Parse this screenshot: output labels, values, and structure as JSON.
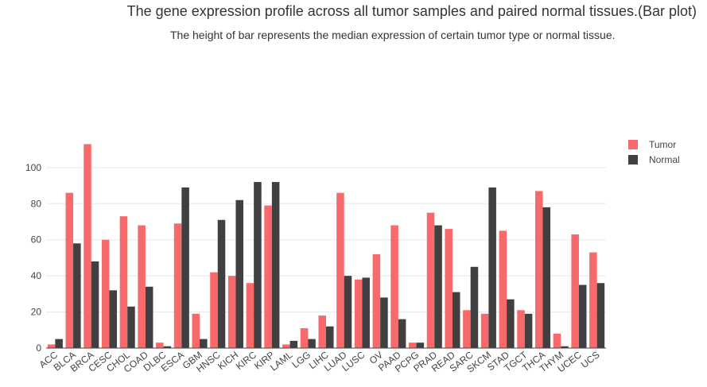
{
  "header": {
    "title": "The gene expression profile across all tumor samples and paired normal tissues.(Bar plot)",
    "subtitle": "The height of bar represents the median expression of certain tumor type or normal tissue."
  },
  "chart_data": {
    "type": "bar",
    "title": "The gene expression profile across all tumor samples and paired normal tissues.(Bar plot)",
    "subtitle": "The height of bar represents the median expression of certain tumor type or normal tissue.",
    "xlabel": "",
    "ylabel": "",
    "ylim": [
      0,
      118
    ],
    "yticks": [
      0,
      20,
      40,
      60,
      80,
      100
    ],
    "grid": true,
    "legend": "top-right",
    "categories": [
      "ACC",
      "BLCA",
      "BRCA",
      "CESC",
      "CHOL",
      "COAD",
      "DLBC",
      "ESCA",
      "GBM",
      "HNSC",
      "KICH",
      "KIRC",
      "KIRP",
      "LAML",
      "LGG",
      "LIHC",
      "LUAD",
      "LUSC",
      "OV",
      "PAAD",
      "PCPG",
      "PRAD",
      "READ",
      "SARC",
      "SKCM",
      "STAD",
      "TGCT",
      "THCA",
      "THYM",
      "UCEC",
      "UCS"
    ],
    "series": [
      {
        "name": "Tumor",
        "color": "#f8696b",
        "values": [
          2,
          86,
          113,
          60,
          73,
          68,
          3,
          69,
          19,
          42,
          40,
          36,
          79,
          2,
          11,
          18,
          86,
          38,
          52,
          68,
          3,
          75,
          66,
          21,
          19,
          65,
          21,
          87,
          8,
          63,
          53
        ]
      },
      {
        "name": "Normal",
        "color": "#404040",
        "values": [
          5,
          58,
          48,
          32,
          23,
          34,
          1,
          89,
          5,
          71,
          82,
          92,
          92,
          4,
          5,
          12,
          40,
          39,
          28,
          16,
          3,
          68,
          31,
          45,
          89,
          27,
          19,
          78,
          1,
          35,
          36
        ]
      }
    ]
  }
}
